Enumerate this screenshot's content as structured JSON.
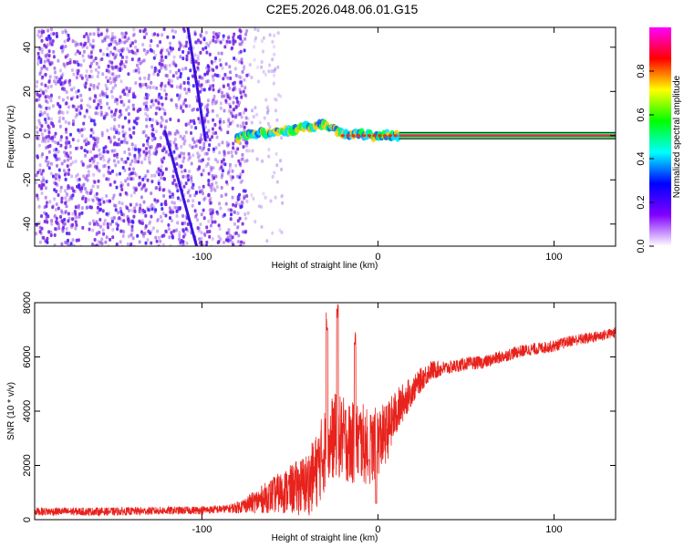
{
  "title": "C2E5.2026.048.06.01.G15",
  "colors": {
    "trace": "#e8221c",
    "axis": "#000000",
    "noise": "#7a28e0",
    "line_core": "#ff2050"
  },
  "chart_data": [
    {
      "type": "heatmap",
      "title": "C2E5.2026.048.06.01.G15",
      "xlabel": "Height of straight line (km)",
      "ylabel": "Frequency (Hz)",
      "xlim": [
        -195,
        135
      ],
      "ylim": [
        -50,
        49
      ],
      "xticks": [
        -100,
        0,
        100
      ],
      "xtick_labels": [
        "-100",
        "0",
        "100"
      ],
      "yticks": [
        -40,
        -20,
        0,
        20,
        40
      ],
      "ytick_labels": [
        "-40",
        "-20",
        "0",
        "20",
        "40"
      ],
      "colorbar": {
        "label": "Normalized spectral amplitude",
        "range": [
          0,
          1
        ],
        "ticks": [
          0,
          0.2,
          0.4,
          0.6,
          0.8
        ],
        "tick_labels": [
          "0.0",
          "0.2",
          "0.4",
          "0.6",
          "0.8"
        ],
        "colormap": [
          "#ffffff",
          "#8000ff",
          "#0000ff",
          "#00ffff",
          "#00ff00",
          "#ffff00",
          "#ff0000",
          "#ff00ff"
        ]
      },
      "carrier_line": {
        "frequency": 0,
        "x_start": -80,
        "x_end": 135,
        "track": [
          [
            -80,
            -1
          ],
          [
            -70,
            1
          ],
          [
            -60,
            1.5
          ],
          [
            -50,
            2.5
          ],
          [
            -40,
            4
          ],
          [
            -30,
            5
          ],
          [
            -25,
            3
          ],
          [
            -20,
            1
          ],
          [
            -10,
            0.5
          ],
          [
            0,
            0
          ],
          [
            10,
            0
          ],
          [
            135,
            0
          ]
        ]
      },
      "noise_region": {
        "x_start": -195,
        "x_end": -75,
        "sparse_to": -55
      },
      "doppler_streaks": [
        {
          "x": [
            -108,
            -98
          ],
          "y": [
            49,
            -2
          ]
        },
        {
          "x": [
            -121,
            -103
          ],
          "y": [
            2,
            -50
          ]
        }
      ]
    },
    {
      "type": "line",
      "xlabel": "Height of straight line (km)",
      "ylabel": "SNR (10 * v/v)",
      "xlim": [
        -195,
        135
      ],
      "ylim": [
        0,
        8000
      ],
      "xticks": [
        -100,
        0,
        100
      ],
      "xtick_labels": [
        "-100",
        "0",
        "100"
      ],
      "yticks": [
        0,
        2000,
        4000,
        6000,
        8000
      ],
      "ytick_labels": [
        "0",
        "2000",
        "4000",
        "6000",
        "8000"
      ],
      "series": [
        {
          "name": "SNR",
          "color": "#e8221c",
          "envelope": {
            "x": [
              -195,
              -150,
              -100,
              -85,
              -80,
              -70,
              -60,
              -50,
              -45,
              -40,
              -35,
              -30,
              -25,
              -20,
              -15,
              -10,
              -5,
              0,
              5,
              10,
              15,
              20,
              25,
              30,
              40,
              50,
              60,
              70,
              80,
              90,
              100,
              110,
              120,
              135
            ],
            "y": [
              300,
              300,
              350,
              400,
              450,
              650,
              900,
              1100,
              1200,
              1300,
              1800,
              2600,
              3100,
              3000,
              2800,
              2900,
              2600,
              2900,
              3200,
              3900,
              4400,
              4800,
              5200,
              5500,
              5600,
              5750,
              5800,
              6000,
              6200,
              6300,
              6400,
              6600,
              6700,
              6900
            ]
          },
          "noise_amp": {
            "x": [
              -195,
              -85,
              -75,
              -50,
              -40,
              -30,
              -10,
              0,
              20,
              40,
              135
            ],
            "y": [
              150,
              150,
              300,
              900,
              1200,
              1600,
              1500,
              1300,
              500,
              250,
              200
            ]
          },
          "spikes": [
            {
              "x": -29,
              "value": 7700
            },
            {
              "x": -23,
              "value": 8000
            },
            {
              "x": -13,
              "value": 7000
            }
          ],
          "dips": [
            {
              "x": -1,
              "value": 600
            },
            {
              "x": -5,
              "value": 2200
            }
          ]
        }
      ]
    }
  ]
}
